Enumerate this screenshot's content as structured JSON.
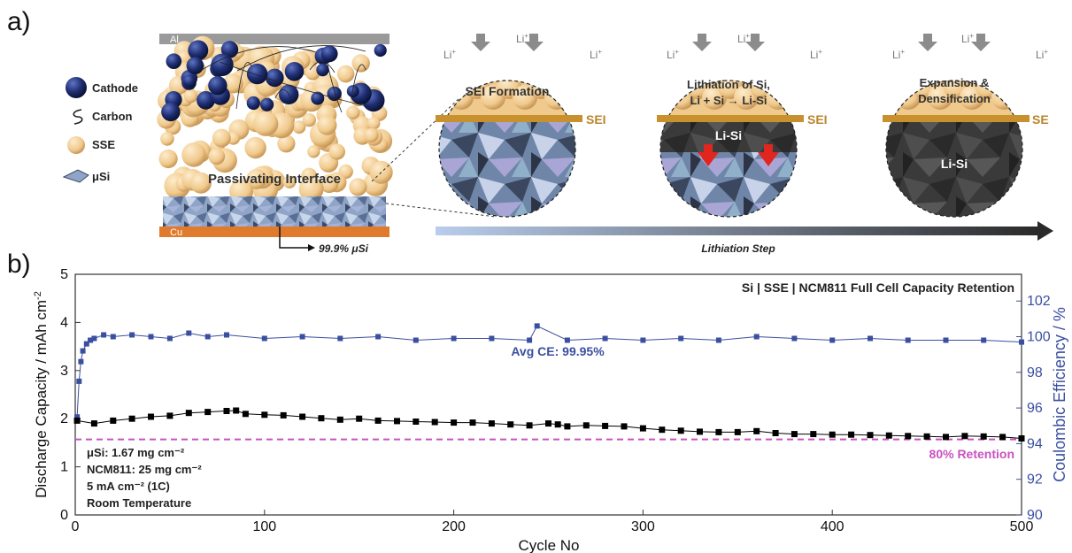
{
  "panel_a": {
    "label": "a)",
    "legend": [
      {
        "name": "Cathode",
        "icon": "cathode-particle-icon"
      },
      {
        "name": "Carbon",
        "icon": "carbon-fiber-icon"
      },
      {
        "name": "SSE",
        "icon": "sse-particle-icon"
      },
      {
        "name": "μSi",
        "icon": "silicon-flake-icon"
      }
    ],
    "cell": {
      "top_collector": "Al",
      "bottom_collector": "Cu",
      "interface_label": "Passivating Interface",
      "anode_label": "99.9% μSi"
    },
    "li_ion": "Li",
    "li_sup": "+",
    "stages": [
      {
        "title_lines": [
          "SEI Formation"
        ],
        "sei_label": "SEI",
        "inner_label": ""
      },
      {
        "title_lines": [
          "Lithiation of Si,",
          "Li + Si → Li-Si"
        ],
        "sei_label": "SEI",
        "inner_label": "Li-Si"
      },
      {
        "title_lines": [
          "Expansion &",
          "Densification"
        ],
        "sei_label": "SE",
        "inner_label": "Li-Si"
      }
    ],
    "arrow_label": "Lithiation Step",
    "colors": {
      "cathode": "#1b2a6b",
      "sse": "#f2cc93",
      "sei": "#c8912e",
      "cu": "#e07a2c",
      "al": "#9a9a9a"
    }
  },
  "panel_b": {
    "label": "b)"
  },
  "chart_data": {
    "type": "scatter",
    "title": "Si | SSE | NCM811 Full Cell Capacity Retention",
    "xlabel": "Cycle No",
    "ylabel": "Discharge Capacity / mAh cm",
    "ylabel_sup": "-2",
    "y2label": "Coulombic Efficiency / %",
    "xlim": [
      0,
      500
    ],
    "ylim": [
      0,
      5
    ],
    "y2lim": [
      90,
      103.5
    ],
    "x_ticks": [
      0,
      100,
      200,
      300,
      400,
      500
    ],
    "y_ticks": [
      0,
      1,
      2,
      3,
      4,
      5
    ],
    "y2_ticks": [
      90,
      92,
      94,
      96,
      98,
      100,
      102
    ],
    "series": [
      {
        "name": "Discharge Capacity",
        "axis": "left",
        "color": "#000000",
        "x": [
          1,
          10,
          20,
          30,
          40,
          50,
          60,
          70,
          80,
          85,
          90,
          100,
          110,
          120,
          130,
          140,
          150,
          160,
          170,
          180,
          190,
          200,
          210,
          220,
          230,
          240,
          250,
          255,
          260,
          270,
          280,
          290,
          300,
          310,
          320,
          330,
          340,
          350,
          360,
          370,
          380,
          390,
          400,
          410,
          420,
          430,
          440,
          450,
          460,
          470,
          480,
          490,
          500
        ],
        "y": [
          1.96,
          1.9,
          1.96,
          2.0,
          2.04,
          2.06,
          2.12,
          2.14,
          2.16,
          2.17,
          2.1,
          2.08,
          2.07,
          2.04,
          2.01,
          1.98,
          2.0,
          1.96,
          1.95,
          1.94,
          1.93,
          1.92,
          1.92,
          1.9,
          1.88,
          1.86,
          1.9,
          1.88,
          1.84,
          1.86,
          1.85,
          1.84,
          1.8,
          1.77,
          1.75,
          1.73,
          1.72,
          1.72,
          1.74,
          1.7,
          1.68,
          1.68,
          1.67,
          1.67,
          1.66,
          1.65,
          1.64,
          1.63,
          1.62,
          1.64,
          1.63,
          1.62,
          1.59
        ]
      },
      {
        "name": "Coulombic Efficiency",
        "axis": "right",
        "color": "#3a4fa0",
        "x": [
          1,
          2,
          3,
          4,
          6,
          8,
          10,
          15,
          20,
          30,
          40,
          50,
          60,
          70,
          80,
          100,
          120,
          140,
          160,
          180,
          200,
          220,
          240,
          244,
          260,
          280,
          300,
          320,
          340,
          360,
          380,
          400,
          420,
          440,
          460,
          480,
          500
        ],
        "y": [
          95.5,
          97.5,
          98.6,
          99.2,
          99.6,
          99.8,
          99.9,
          100.1,
          100.0,
          100.1,
          100.0,
          99.9,
          100.2,
          100.0,
          100.1,
          99.9,
          100.0,
          99.9,
          100.0,
          99.8,
          99.9,
          99.9,
          99.8,
          100.6,
          99.8,
          99.9,
          99.8,
          99.9,
          99.8,
          100.0,
          99.9,
          99.8,
          99.9,
          99.8,
          99.8,
          99.8,
          99.7
        ]
      }
    ],
    "reference_line": {
      "label": "80% Retention",
      "y": 1.57,
      "color": "#c852c0"
    },
    "annotations": {
      "avg_ce": "Avg CE: 99.95%",
      "conditions": [
        "μSi: 1.67 mg cm⁻²",
        "NCM811: 25 mg cm⁻²",
        "5 mA cm⁻² (1C)",
        "Room Temperature"
      ]
    }
  }
}
